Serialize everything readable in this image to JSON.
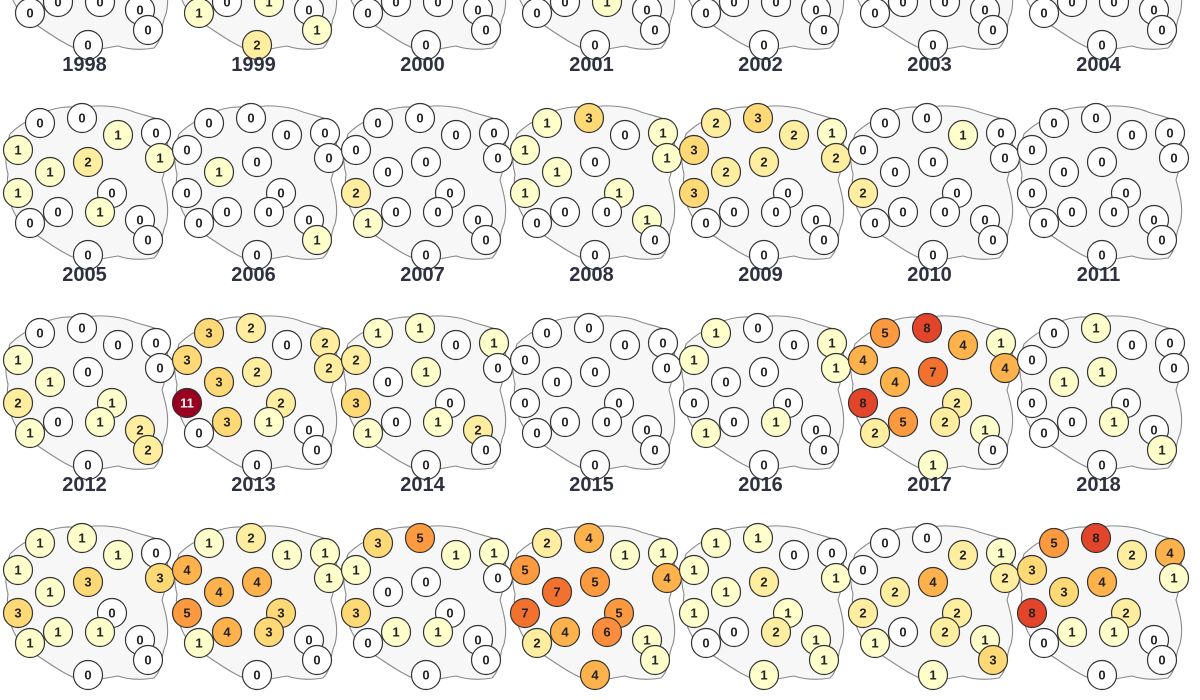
{
  "colors": {
    "c0": "#ffffff",
    "c1": "#ffffcc",
    "c2": "#ffeda0",
    "c3": "#fed976",
    "c4": "#feb24c",
    "c5": "#fd9a40",
    "c6": "#fc8d3c",
    "c7": "#f3712e",
    "c8": "#e3452b",
    "c11": "#99001f",
    "outline": "#333333",
    "title": "#2e3240"
  },
  "region_order": [
    "pomorskie",
    "warminsko-mazurskie",
    "zachodniopomorskie",
    "kujawsko-pomorskie",
    "podlaskie",
    "lubuskie",
    "wielkopolskie",
    "mazowieckie",
    "lodzkie",
    "dolnoslaskie",
    "lubelskie",
    "swietokrzyskie",
    "opolskie",
    "slaskie",
    "malopolskie",
    "podkarpackie"
  ],
  "maps": [
    {
      "year": "",
      "values": [
        0,
        0,
        1,
        0,
        0,
        0,
        0,
        0,
        0,
        0,
        0,
        0,
        0,
        0,
        0,
        0
      ]
    },
    {
      "year": "",
      "values": [
        0,
        0,
        0,
        0,
        0,
        0,
        0,
        1,
        0,
        0,
        1,
        1,
        1,
        0,
        1,
        2
      ]
    },
    {
      "year": "",
      "values": [
        0,
        0,
        0,
        0,
        0,
        0,
        0,
        0,
        0,
        0,
        0,
        0,
        0,
        0,
        0,
        0
      ]
    },
    {
      "year": "",
      "values": [
        0,
        0,
        0,
        0,
        0,
        0,
        0,
        0,
        0,
        0,
        1,
        1,
        0,
        0,
        0,
        0
      ]
    },
    {
      "year": "",
      "values": [
        0,
        0,
        0,
        0,
        0,
        0,
        0,
        0,
        0,
        0,
        0,
        0,
        0,
        0,
        0,
        0
      ]
    },
    {
      "year": "",
      "values": [
        0,
        0,
        0,
        0,
        0,
        0,
        0,
        0,
        0,
        0,
        0,
        0,
        0,
        0,
        0,
        0
      ]
    },
    {
      "year": "",
      "values": [
        0,
        0,
        0,
        0,
        0,
        0,
        0,
        0,
        0,
        0,
        0,
        0,
        0,
        0,
        0,
        0
      ]
    },
    {
      "year": "1998",
      "values": [
        0,
        1,
        0,
        1,
        0,
        1,
        0,
        1,
        2,
        1,
        0,
        1,
        0,
        0,
        0,
        0
      ]
    },
    {
      "year": "1999",
      "values": [
        0,
        0,
        0,
        0,
        0,
        1,
        0,
        0,
        0,
        0,
        0,
        0,
        0,
        0,
        1,
        0
      ]
    },
    {
      "year": "2000",
      "values": [
        0,
        0,
        0,
        0,
        0,
        0,
        0,
        0,
        0,
        2,
        0,
        0,
        1,
        0,
        0,
        0
      ]
    },
    {
      "year": "2001",
      "values": [
        3,
        0,
        1,
        1,
        1,
        1,
        0,
        1,
        0,
        1,
        1,
        0,
        0,
        1,
        0,
        0
      ]
    },
    {
      "year": "2002",
      "values": [
        3,
        2,
        2,
        3,
        1,
        2,
        0,
        2,
        2,
        3,
        0,
        0,
        0,
        0,
        0,
        0
      ]
    },
    {
      "year": "2003",
      "values": [
        0,
        1,
        0,
        0,
        0,
        0,
        0,
        0,
        0,
        2,
        0,
        0,
        0,
        0,
        0,
        0
      ]
    },
    {
      "year": "2004",
      "values": [
        0,
        0,
        0,
        0,
        0,
        0,
        0,
        0,
        0,
        0,
        0,
        0,
        0,
        0,
        0,
        0
      ]
    },
    {
      "year": "2005",
      "values": [
        0,
        0,
        0,
        1,
        0,
        1,
        0,
        0,
        0,
        2,
        1,
        1,
        1,
        2,
        2,
        0
      ]
    },
    {
      "year": "2006",
      "values": [
        2,
        0,
        3,
        3,
        2,
        3,
        3,
        2,
        2,
        11,
        2,
        1,
        0,
        0,
        0,
        0
      ]
    },
    {
      "year": "2007",
      "values": [
        1,
        0,
        1,
        2,
        1,
        0,
        0,
        0,
        1,
        3,
        0,
        1,
        1,
        2,
        0,
        0
      ]
    },
    {
      "year": "2008",
      "values": [
        0,
        0,
        0,
        0,
        0,
        0,
        0,
        0,
        0,
        0,
        0,
        0,
        0,
        0,
        0,
        0
      ]
    },
    {
      "year": "2009",
      "values": [
        0,
        0,
        1,
        1,
        1,
        0,
        0,
        1,
        0,
        0,
        0,
        1,
        1,
        0,
        0,
        0
      ]
    },
    {
      "year": "2010",
      "values": [
        8,
        4,
        5,
        4,
        1,
        4,
        5,
        4,
        7,
        8,
        2,
        2,
        2,
        1,
        0,
        1
      ]
    },
    {
      "year": "2011",
      "values": [
        1,
        0,
        0,
        0,
        0,
        1,
        0,
        0,
        1,
        0,
        0,
        1,
        0,
        0,
        1,
        0
      ]
    },
    {
      "year": "2012",
      "values": [
        1,
        1,
        1,
        1,
        0,
        1,
        1,
        3,
        3,
        3,
        0,
        1,
        1,
        0,
        0,
        0
      ]
    },
    {
      "year": "2013",
      "values": [
        2,
        1,
        1,
        4,
        1,
        4,
        4,
        1,
        4,
        5,
        3,
        3,
        1,
        0,
        0,
        0
      ]
    },
    {
      "year": "2014",
      "values": [
        5,
        1,
        3,
        1,
        1,
        0,
        1,
        0,
        0,
        3,
        0,
        1,
        0,
        0,
        0,
        0
      ]
    },
    {
      "year": "2015",
      "values": [
        4,
        1,
        2,
        5,
        1,
        7,
        4,
        4,
        5,
        7,
        5,
        6,
        2,
        1,
        1,
        4
      ]
    },
    {
      "year": "2016",
      "values": [
        1,
        0,
        1,
        1,
        0,
        1,
        0,
        1,
        2,
        1,
        1,
        2,
        0,
        1,
        1,
        1
      ]
    },
    {
      "year": "2017",
      "values": [
        0,
        2,
        0,
        0,
        1,
        2,
        0,
        2,
        4,
        2,
        2,
        2,
        1,
        1,
        3,
        1
      ]
    },
    {
      "year": "2018",
      "values": [
        8,
        2,
        5,
        3,
        4,
        3,
        1,
        1,
        4,
        8,
        2,
        1,
        0,
        0,
        0,
        0
      ]
    }
  ]
}
